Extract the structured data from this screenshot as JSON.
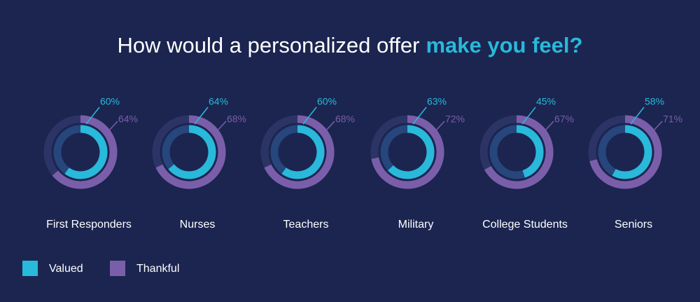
{
  "chart_data": {
    "type": "donut",
    "title": "How would a personalized offer",
    "title_emphasis": "make you feel?",
    "categories": [
      "First Responders",
      "Nurses",
      "Teachers",
      "Military",
      "College Students",
      "Seniors"
    ],
    "series": [
      {
        "name": "Valued",
        "color": "#29b9da",
        "values": [
          60,
          64,
          60,
          63,
          45,
          58
        ],
        "value_labels": [
          "60%",
          "64%",
          "60%",
          "63%",
          "45%",
          "58%"
        ]
      },
      {
        "name": "Thankful",
        "color": "#7b5ea9",
        "values": [
          64,
          68,
          68,
          72,
          67,
          71
        ],
        "value_labels": [
          "64%",
          "68%",
          "68%",
          "72%",
          "67%",
          "71%"
        ]
      }
    ]
  }
}
